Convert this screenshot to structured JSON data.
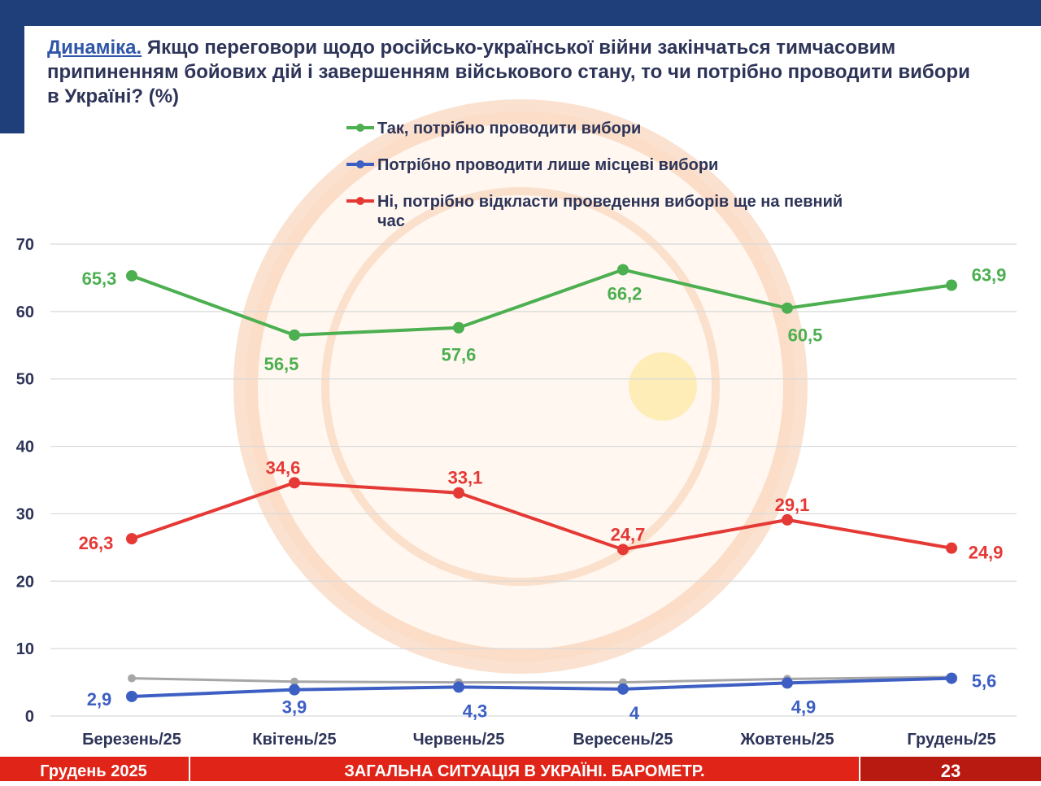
{
  "header": {
    "title_lead": "Динаміка.",
    "title_rest": " Якщо переговори щодо російсько-української війни закінчаться тимчасовим припиненням бойових дій і завершенням військового стану, то чи потрібно проводити вибори в Україні? (%)"
  },
  "chart_data": {
    "type": "line",
    "categories": [
      "Березень/25",
      "Квітень/25",
      "Червень/25",
      "Вересень/25",
      "Жовтень/25",
      "Грудень/25"
    ],
    "ylim": [
      0,
      70
    ],
    "yticks": [
      0,
      10,
      20,
      30,
      40,
      50,
      60,
      70
    ],
    "grid": true,
    "legend_position": "top",
    "series": [
      {
        "name": "Так, потрібно проводити вибори",
        "color": "#4caf50",
        "values": [
          65.3,
          56.5,
          57.6,
          66.2,
          60.5,
          63.9
        ],
        "labels": [
          "65,3",
          "56,5",
          "57,6",
          "66,2",
          "60,5",
          "63,9"
        ]
      },
      {
        "name": "Потрібно проводити лише місцеві вибори",
        "color": "#3d5fc4",
        "values": [
          2.9,
          3.9,
          4.3,
          4,
          4.9,
          5.6
        ],
        "labels": [
          "2,9",
          "3,9",
          "4,3",
          "4",
          "4,9",
          "5,6"
        ]
      },
      {
        "name": "Ні, потрібно відкласти проведення виборів ще на певний час",
        "name_lines": [
          "Ні, потрібно відкласти проведення виборів ще на певний",
          "час"
        ],
        "color": "#e53935",
        "values": [
          26.3,
          34.6,
          33.1,
          24.7,
          29.1,
          24.9
        ],
        "labels": [
          "26,3",
          "34,6",
          "33,1",
          "24,7",
          "29,1",
          "24,9"
        ]
      },
      {
        "name": "",
        "color": "#a6a6a6",
        "values": [
          5.6,
          5.1,
          5,
          5,
          5.5,
          5.8
        ],
        "labels": []
      }
    ]
  },
  "footer": {
    "left": "Грудень 2025",
    "center": "ЗАГАЛЬНА СИТУАЦІЯ В УКРАЇНІ. БАРОМЕТР.",
    "page": "23"
  }
}
